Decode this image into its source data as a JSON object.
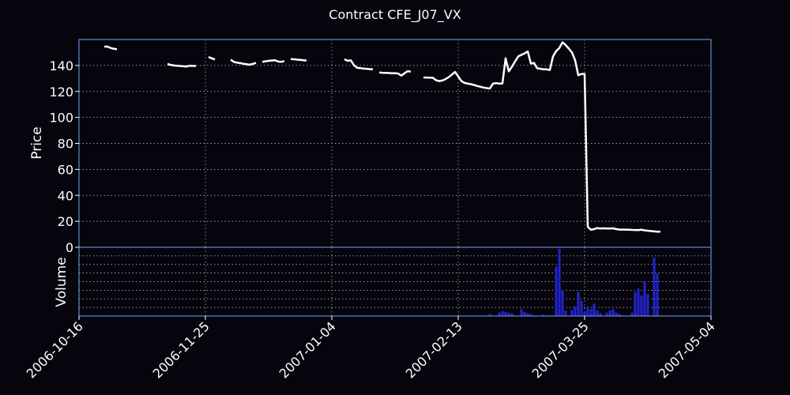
{
  "chart_data": {
    "type": "line",
    "title": "Contract CFE_J07_VX",
    "x_axis": {
      "type": "date",
      "range": [
        "2006-10-16",
        "2007-05-04"
      ],
      "tick_labels": [
        "2006-10-16",
        "2006-11-25",
        "2007-01-04",
        "2007-02-13",
        "2007-03-25",
        "2007-05-04"
      ]
    },
    "price_panel": {
      "ylabel": "Price",
      "ylim": [
        0,
        160
      ],
      "y_tick_labels": [
        "0",
        "20",
        "40",
        "60",
        "80",
        "100",
        "120",
        "140"
      ],
      "grid": true,
      "series": [
        {
          "color": "#ffffff",
          "segments": [
            [
              [
                "2006-10-24",
                154.5
              ],
              [
                "2006-10-25",
                154.5
              ],
              [
                "2006-10-26",
                153.5
              ],
              [
                "2006-10-27",
                152.8
              ],
              [
                "2006-10-28",
                152.5
              ]
            ],
            [
              [
                "2006-11-13",
                141.2
              ],
              [
                "2006-11-14",
                140.5
              ],
              [
                "2006-11-15",
                140.0
              ],
              [
                "2006-11-17",
                139.6
              ],
              [
                "2006-11-19",
                139.2
              ],
              [
                "2006-11-20",
                139.8
              ],
              [
                "2006-11-22",
                139.6
              ]
            ],
            [
              [
                "2006-11-26",
                146.5
              ],
              [
                "2006-11-27",
                145.5
              ],
              [
                "2006-11-28",
                144.6
              ]
            ],
            [
              [
                "2006-12-03",
                144.5
              ],
              [
                "2006-12-04",
                142.8
              ],
              [
                "2006-12-05",
                142.2
              ],
              [
                "2006-12-06",
                141.8
              ],
              [
                "2006-12-07",
                141.3
              ],
              [
                "2006-12-08",
                141.0
              ],
              [
                "2006-12-09",
                140.6
              ],
              [
                "2006-12-10",
                141.2
              ],
              [
                "2006-12-11",
                142.0
              ]
            ],
            [
              [
                "2006-12-13",
                142.8
              ],
              [
                "2006-12-14",
                143.2
              ],
              [
                "2006-12-15",
                143.6
              ],
              [
                "2006-12-16",
                143.8
              ],
              [
                "2006-12-17",
                144.0
              ],
              [
                "2006-12-18",
                143.0
              ],
              [
                "2006-12-19",
                142.8
              ],
              [
                "2006-12-20",
                143.4
              ]
            ],
            [
              [
                "2006-12-22",
                145.0
              ],
              [
                "2006-12-23",
                144.8
              ],
              [
                "2006-12-24",
                144.5
              ],
              [
                "2006-12-25",
                144.3
              ],
              [
                "2006-12-26",
                144.0
              ],
              [
                "2006-12-27",
                143.8
              ]
            ],
            [
              [
                "2007-01-08",
                144.8
              ],
              [
                "2007-01-09",
                143.6
              ],
              [
                "2007-01-10",
                144.0
              ],
              [
                "2007-01-11",
                140.2
              ],
              [
                "2007-01-12",
                138.2
              ],
              [
                "2007-01-13",
                138.0
              ],
              [
                "2007-01-14",
                137.6
              ],
              [
                "2007-01-15",
                137.4
              ],
              [
                "2007-01-16",
                137.2
              ],
              [
                "2007-01-17",
                137.0
              ]
            ],
            [
              [
                "2007-01-19",
                134.6
              ],
              [
                "2007-01-20",
                134.4
              ],
              [
                "2007-01-22",
                134.2
              ],
              [
                "2007-01-23",
                134.0
              ],
              [
                "2007-01-24",
                134.1
              ],
              [
                "2007-01-25",
                133.8
              ],
              [
                "2007-01-26",
                132.2
              ],
              [
                "2007-01-27",
                134.0
              ],
              [
                "2007-01-28",
                135.6
              ],
              [
                "2007-01-29",
                135.3
              ]
            ],
            [
              [
                "2007-02-02",
                130.8
              ],
              [
                "2007-02-03",
                130.6
              ],
              [
                "2007-02-04",
                130.6
              ],
              [
                "2007-02-05",
                130.5
              ],
              [
                "2007-02-06",
                128.6
              ],
              [
                "2007-02-07",
                128.0
              ],
              [
                "2007-02-08",
                128.4
              ],
              [
                "2007-02-09",
                129.5
              ],
              [
                "2007-02-10",
                131.0
              ],
              [
                "2007-02-11",
                133.0
              ],
              [
                "2007-02-12",
                135.0
              ],
              [
                "2007-02-13",
                131.6
              ],
              [
                "2007-02-14",
                128.0
              ],
              [
                "2007-02-15",
                126.6
              ],
              [
                "2007-02-16",
                126.0
              ],
              [
                "2007-02-17",
                125.6
              ],
              [
                "2007-02-18",
                125.0
              ],
              [
                "2007-02-19",
                124.2
              ],
              [
                "2007-02-20",
                123.6
              ],
              [
                "2007-02-21",
                123.0
              ],
              [
                "2007-02-22",
                122.6
              ],
              [
                "2007-02-23",
                122.2
              ],
              [
                "2007-02-24",
                126.0
              ],
              [
                "2007-02-25",
                126.4
              ],
              [
                "2007-02-26",
                126.0
              ],
              [
                "2007-02-27",
                126.2
              ],
              [
                "2007-02-28",
                145.5
              ],
              [
                "2007-03-01",
                135.5
              ],
              [
                "2007-03-02",
                139.0
              ],
              [
                "2007-03-03",
                143.0
              ],
              [
                "2007-03-04",
                147.0
              ],
              [
                "2007-03-05",
                148.2
              ],
              [
                "2007-03-06",
                149.3
              ],
              [
                "2007-03-07",
                150.8
              ],
              [
                "2007-03-08",
                141.5
              ],
              [
                "2007-03-09",
                142.0
              ],
              [
                "2007-03-10",
                137.8
              ],
              [
                "2007-03-11",
                137.5
              ],
              [
                "2007-03-12",
                137.0
              ],
              [
                "2007-03-13",
                137.0
              ],
              [
                "2007-03-14",
                136.5
              ],
              [
                "2007-03-15",
                147.0
              ],
              [
                "2007-03-16",
                151.0
              ],
              [
                "2007-03-17",
                153.5
              ],
              [
                "2007-03-18",
                157.8
              ],
              [
                "2007-03-19",
                155.8
              ],
              [
                "2007-03-20",
                153.0
              ],
              [
                "2007-03-21",
                150.0
              ],
              [
                "2007-03-22",
                144.0
              ],
              [
                "2007-03-23",
                132.5
              ],
              [
                "2007-03-24",
                133.5
              ],
              [
                "2007-03-25",
                133.5
              ],
              [
                "2007-03-26",
                15.8
              ],
              [
                "2007-03-27",
                13.5
              ],
              [
                "2007-03-28",
                14.0
              ],
              [
                "2007-03-29",
                14.8
              ],
              [
                "2007-03-30",
                14.5
              ],
              [
                "2007-03-31",
                14.6
              ],
              [
                "2007-04-01",
                14.5
              ],
              [
                "2007-04-02",
                14.4
              ],
              [
                "2007-04-03",
                14.6
              ],
              [
                "2007-04-04",
                14.0
              ],
              [
                "2007-04-05",
                13.6
              ],
              [
                "2007-04-06",
                13.6
              ],
              [
                "2007-04-07",
                13.5
              ],
              [
                "2007-04-08",
                13.5
              ],
              [
                "2007-04-09",
                13.4
              ],
              [
                "2007-04-10",
                13.3
              ],
              [
                "2007-04-11",
                13.2
              ],
              [
                "2007-04-12",
                13.5
              ],
              [
                "2007-04-13",
                13.0
              ],
              [
                "2007-04-14",
                12.8
              ],
              [
                "2007-04-15",
                12.5
              ],
              [
                "2007-04-16",
                12.2
              ],
              [
                "2007-04-17",
                12.0
              ],
              [
                "2007-04-18",
                12.0
              ]
            ]
          ]
        }
      ]
    },
    "volume_panel": {
      "ylabel": "Volume",
      "ylim": [
        0,
        1
      ],
      "grid": true,
      "bar_color": "#2323c8",
      "bars": [
        [
          "2007-02-23",
          0.03
        ],
        [
          "2007-02-26",
          0.05
        ],
        [
          "2007-02-27",
          0.07
        ],
        [
          "2007-02-28",
          0.06
        ],
        [
          "2007-03-01",
          0.05
        ],
        [
          "2007-03-02",
          0.04
        ],
        [
          "2007-03-05",
          0.1
        ],
        [
          "2007-03-06",
          0.06
        ],
        [
          "2007-03-07",
          0.04
        ],
        [
          "2007-03-08",
          0.03
        ],
        [
          "2007-03-12",
          0.02
        ],
        [
          "2007-03-16",
          0.72
        ],
        [
          "2007-03-17",
          0.98
        ],
        [
          "2007-03-18",
          0.38
        ],
        [
          "2007-03-19",
          0.08
        ],
        [
          "2007-03-21",
          0.09
        ],
        [
          "2007-03-22",
          0.14
        ],
        [
          "2007-03-23",
          0.35
        ],
        [
          "2007-03-24",
          0.22
        ],
        [
          "2007-03-25",
          0.06
        ],
        [
          "2007-03-26",
          0.14
        ],
        [
          "2007-03-27",
          0.1
        ],
        [
          "2007-03-28",
          0.18
        ],
        [
          "2007-03-29",
          0.08
        ],
        [
          "2007-03-30",
          0.04
        ],
        [
          "2007-04-01",
          0.05
        ],
        [
          "2007-04-02",
          0.08
        ],
        [
          "2007-04-03",
          0.1
        ],
        [
          "2007-04-04",
          0.05
        ],
        [
          "2007-04-05",
          0.03
        ],
        [
          "2007-04-09",
          0.05
        ],
        [
          "2007-04-10",
          0.35
        ],
        [
          "2007-04-11",
          0.4
        ],
        [
          "2007-04-12",
          0.3
        ],
        [
          "2007-04-13",
          0.5
        ],
        [
          "2007-04-14",
          0.32
        ],
        [
          "2007-04-16",
          0.85
        ],
        [
          "2007-04-17",
          0.62
        ]
      ]
    }
  }
}
